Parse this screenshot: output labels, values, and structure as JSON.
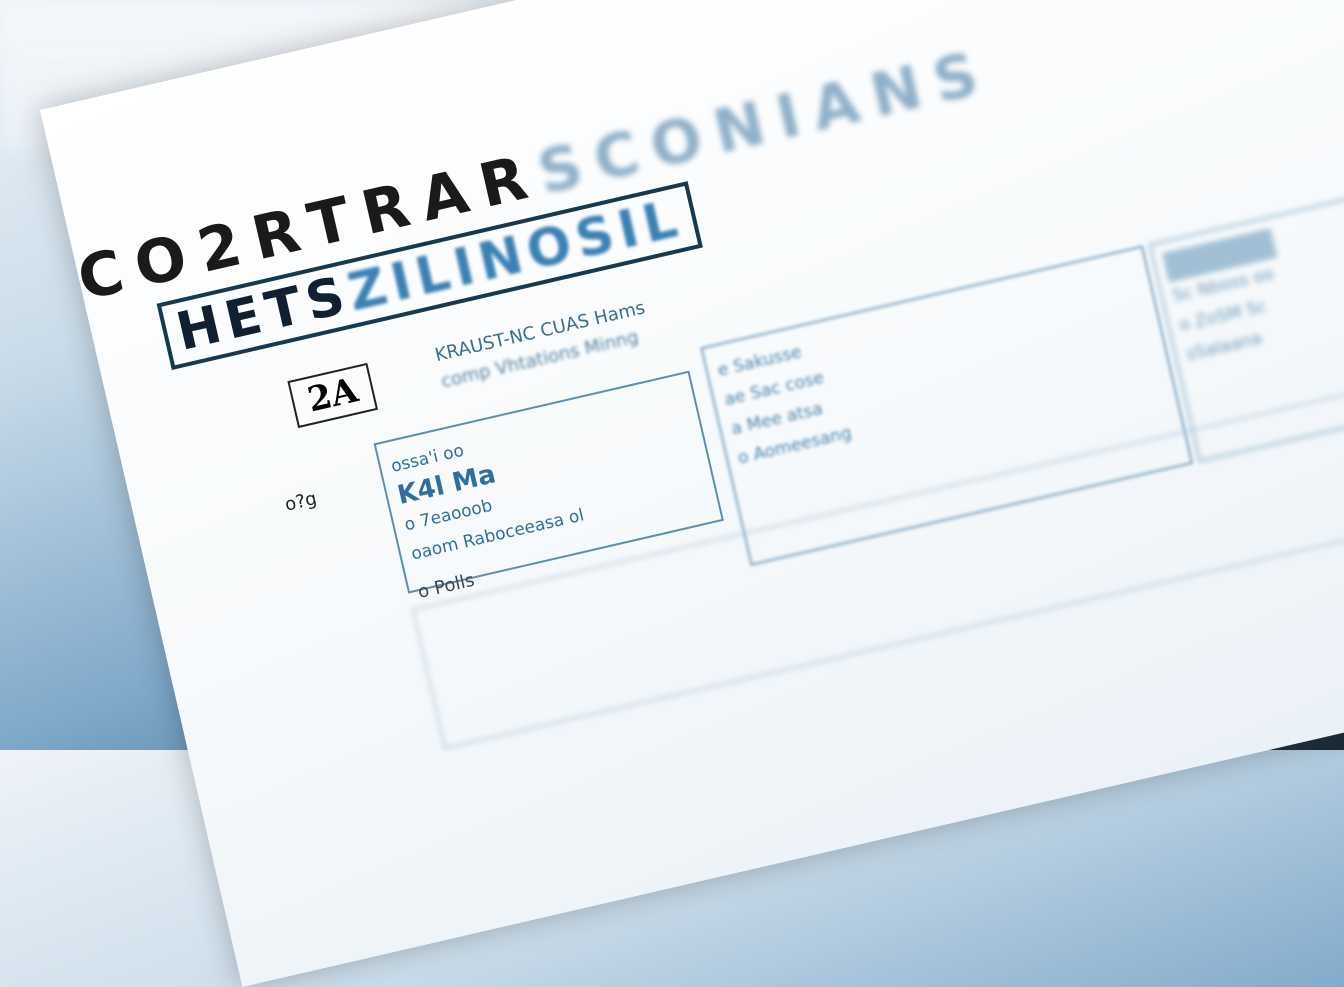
{
  "document": {
    "title_main": "CO2RTRAR",
    "title_faded": "SCONIANS",
    "banner_dark": "HETS",
    "banner_blue": "ZILINOSIL",
    "badge": "2A",
    "subtitle_lines": [
      "KRAUST-NC CUAS Hams",
      "comp Vhtations Minng"
    ],
    "side_mark": "o?g",
    "box_left_lines": [
      "ossa'i oo",
      "K4l Ma",
      "o 7eaooob",
      "oaom Raboceeasa ol"
    ],
    "box_mid_lines": [
      "e Sakusse",
      "ae Sac cose",
      "a Mee atsa",
      "o Aomeesang"
    ],
    "box_right_lines": [
      "Sc Nboss oo",
      "o ZoSM Sc",
      "sSalaana"
    ],
    "footer_mark": "o Polls"
  }
}
